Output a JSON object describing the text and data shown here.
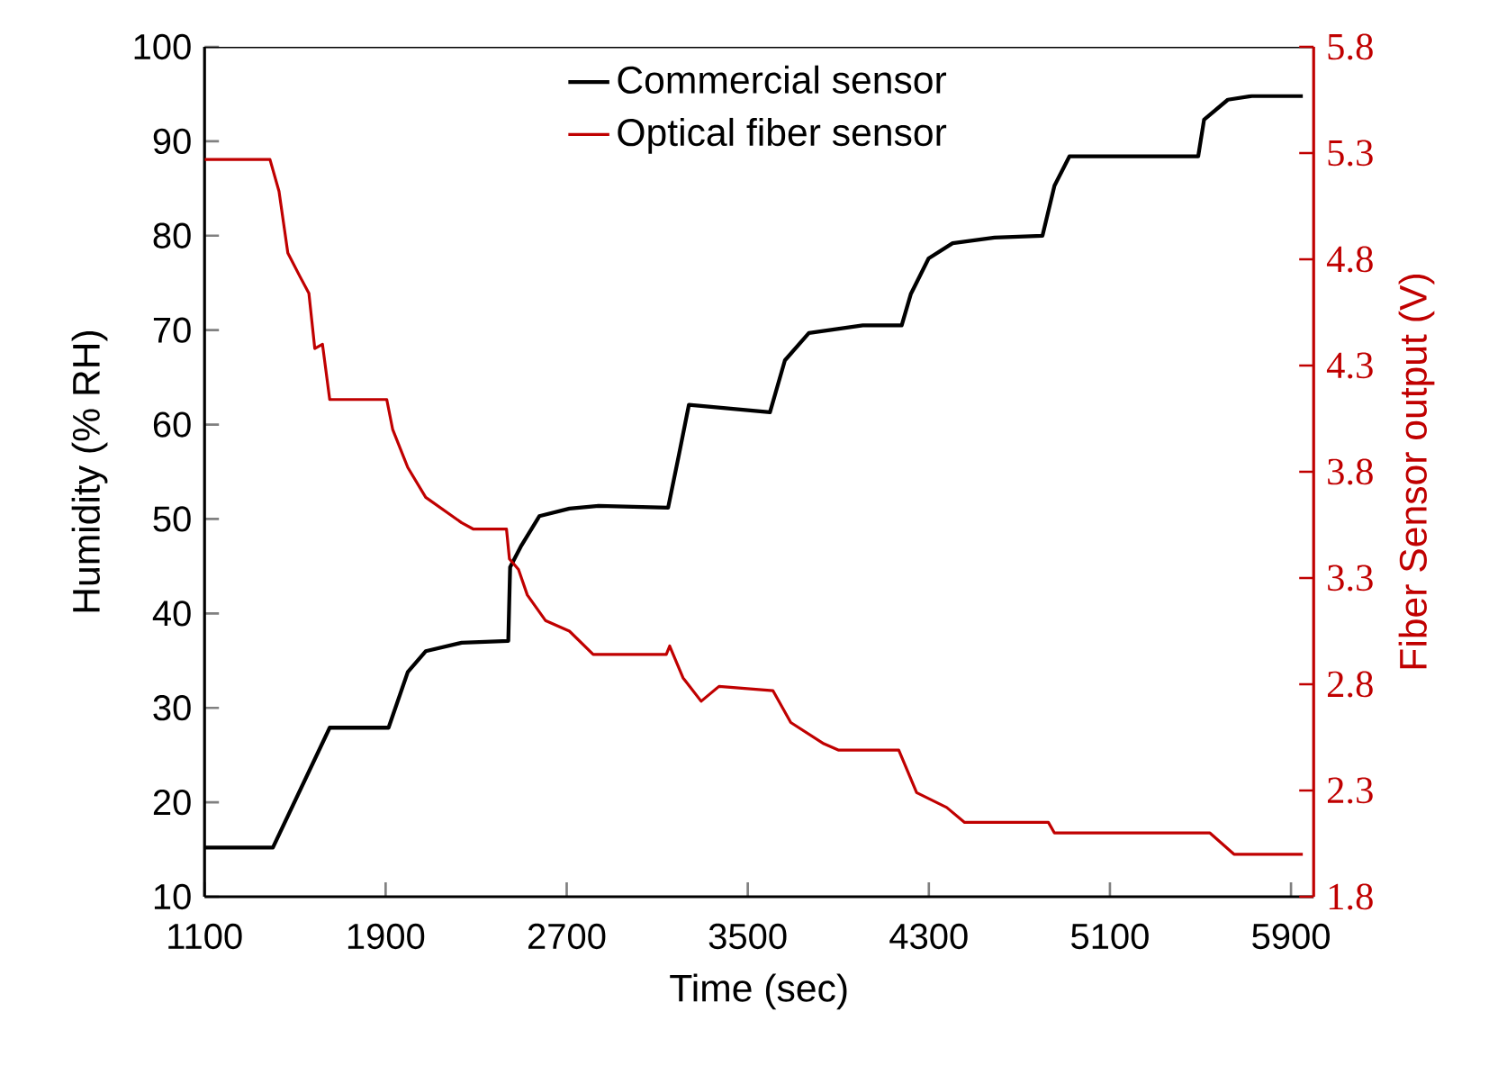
{
  "chart_data": {
    "type": "line",
    "xlabel": "Time (sec)",
    "ylabel": "Humidity (% RH)",
    "y2label": "Fiber Sensor output (V)",
    "xlim": [
      1100,
      6000
    ],
    "xticks": [
      1100,
      1900,
      2700,
      3500,
      4300,
      5100,
      5900
    ],
    "ylim": [
      10,
      100
    ],
    "yticks": [
      10,
      20,
      30,
      40,
      50,
      60,
      70,
      80,
      90,
      100
    ],
    "y2lim": [
      1.8,
      5.8
    ],
    "y2ticks": [
      1.8,
      2.3,
      2.8,
      3.3,
      3.8,
      4.3,
      4.8,
      5.3,
      5.8
    ],
    "legend": "top",
    "series": [
      {
        "name": "Commercial sensor",
        "color": "#000000",
        "x": [
          1100,
          1402,
          1653,
          1913,
          1998,
          2077,
          2236,
          2442,
          2450,
          2500,
          2579,
          2712,
          2841,
          3148,
          3195,
          3240,
          3598,
          3664,
          3770,
          4008,
          4180,
          4220,
          4299,
          4405,
          4590,
          4802,
          4855,
          4921,
          5490,
          5516,
          5621,
          5727,
          5952
        ],
        "values": [
          15.2,
          15.2,
          27.9,
          27.9,
          33.8,
          36.0,
          36.9,
          37.1,
          44.9,
          47.2,
          50.3,
          51.1,
          51.4,
          51.2,
          56.7,
          62.1,
          61.3,
          66.8,
          69.7,
          70.5,
          70.5,
          73.8,
          77.6,
          79.2,
          79.8,
          80.0,
          85.3,
          88.4,
          88.4,
          92.3,
          94.4,
          94.8,
          94.8
        ]
      },
      {
        "name": "Optical fiber sensor",
        "color": "#c00000",
        "axis": "y2",
        "x": [
          1100,
          1389,
          1429,
          1468,
          1521,
          1561,
          1587,
          1621,
          1653,
          1905,
          1931,
          1998,
          2077,
          2236,
          2288,
          2434,
          2447,
          2487,
          2526,
          2606,
          2712,
          2817,
          3140,
          3155,
          3214,
          3294,
          3373,
          3611,
          3690,
          3836,
          3902,
          4167,
          4246,
          4379,
          4458,
          4828,
          4855,
          5542,
          5648,
          5952
        ],
        "values": [
          5.27,
          5.27,
          5.12,
          4.83,
          4.72,
          4.64,
          4.38,
          4.4,
          4.14,
          4.14,
          4.0,
          3.82,
          3.68,
          3.56,
          3.53,
          3.53,
          3.39,
          3.34,
          3.22,
          3.1,
          3.05,
          2.94,
          2.94,
          2.98,
          2.83,
          2.72,
          2.79,
          2.77,
          2.62,
          2.52,
          2.49,
          2.49,
          2.29,
          2.22,
          2.15,
          2.15,
          2.1,
          2.1,
          2.0,
          2.0
        ]
      }
    ]
  }
}
